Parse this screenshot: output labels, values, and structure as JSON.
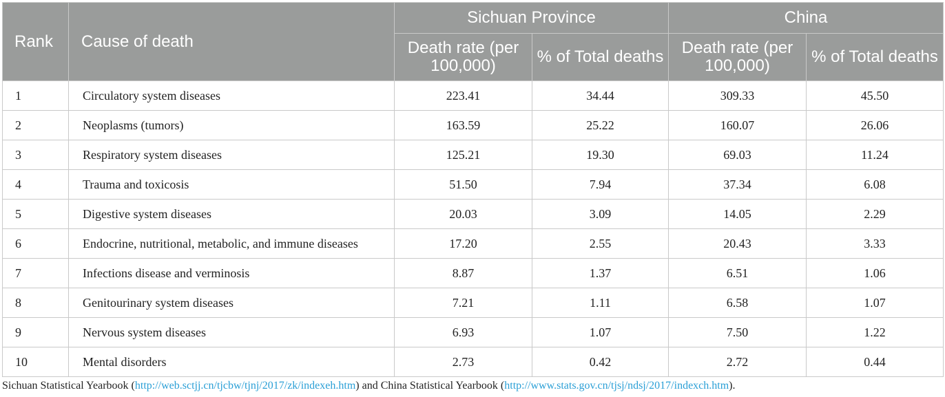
{
  "header": {
    "rank": "Rank",
    "cause": "Cause of death",
    "group_sichuan": "Sichuan Province",
    "group_china": "China",
    "death_rate": "Death rate (per 100,000)",
    "pct_total": "% of Total deaths"
  },
  "rows": [
    {
      "rank": "1",
      "cause": "Circulatory system diseases",
      "sc_rate": "223.41",
      "sc_pct": "34.44",
      "cn_rate": "309.33",
      "cn_pct": "45.50"
    },
    {
      "rank": "2",
      "cause": "Neoplasms (tumors)",
      "sc_rate": "163.59",
      "sc_pct": "25.22",
      "cn_rate": "160.07",
      "cn_pct": "26.06"
    },
    {
      "rank": "3",
      "cause": "Respiratory system diseases",
      "sc_rate": "125.21",
      "sc_pct": "19.30",
      "cn_rate": "69.03",
      "cn_pct": "11.24"
    },
    {
      "rank": "4",
      "cause": "Trauma and toxicosis",
      "sc_rate": "51.50",
      "sc_pct": "7.94",
      "cn_rate": "37.34",
      "cn_pct": "6.08"
    },
    {
      "rank": "5",
      "cause": "Digestive system diseases",
      "sc_rate": "20.03",
      "sc_pct": "3.09",
      "cn_rate": "14.05",
      "cn_pct": "2.29"
    },
    {
      "rank": "6",
      "cause": "Endocrine, nutritional, metabolic, and immune diseases",
      "sc_rate": "17.20",
      "sc_pct": "2.55",
      "cn_rate": "20.43",
      "cn_pct": "3.33"
    },
    {
      "rank": "7",
      "cause": "Infections disease and verminosis",
      "sc_rate": "8.87",
      "sc_pct": "1.37",
      "cn_rate": "6.51",
      "cn_pct": "1.06"
    },
    {
      "rank": "8",
      "cause": "Genitourinary system diseases",
      "sc_rate": "7.21",
      "sc_pct": "1.11",
      "cn_rate": "6.58",
      "cn_pct": "1.07"
    },
    {
      "rank": "9",
      "cause": "Nervous system diseases",
      "sc_rate": "6.93",
      "sc_pct": "1.07",
      "cn_rate": "7.50",
      "cn_pct": "1.22"
    },
    {
      "rank": "10",
      "cause": "Mental disorders",
      "sc_rate": "2.73",
      "sc_pct": "0.42",
      "cn_rate": "2.72",
      "cn_pct": "0.44"
    }
  ],
  "footnote": {
    "part1": "Sichuan Statistical Yearbook (",
    "link1": "http://web.sctjj.cn/tjcbw/tjnj/2017/zk/indexeh.htm",
    "part2": ") and China Statistical Yearbook (",
    "link2": "http://www.stats.gov.cn/tjsj/ndsj/2017/indexch.htm",
    "part3": ")."
  },
  "colors": {
    "header_bg": "#9a9c9b",
    "header_text": "#ffffff",
    "link": "#2a9fd6",
    "grid": "#c9c9c9"
  }
}
